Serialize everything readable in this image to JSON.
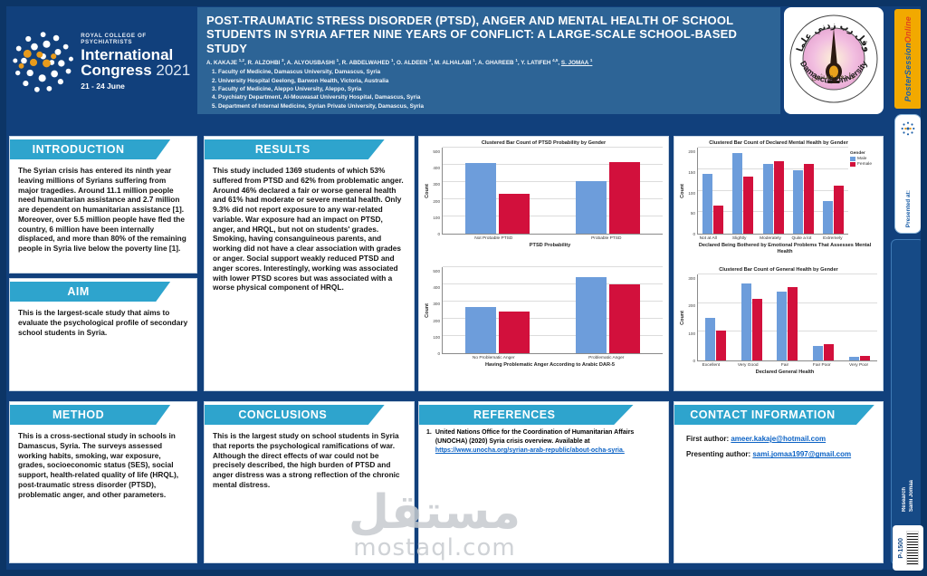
{
  "header": {
    "congress": {
      "org": "ROYAL COLLEGE OF PSYCHIATRISTS",
      "line1": "International",
      "line2": "Congress",
      "year": "2021",
      "dates": "21 - 24 June"
    },
    "title": "POST-TRAUMATIC STRESS DISORDER (PTSD), ANGER AND MENTAL HEALTH OF SCHOOL STUDENTS IN SYRIA AFTER NINE YEARS OF CONFLICT: A LARGE-SCALE SCHOOL-BASED STUDY",
    "authors": [
      {
        "name": "A. KAKAJE",
        "sup": "1,2",
        "underline": false
      },
      {
        "name": "R. ALZOHBI",
        "sup": "3",
        "underline": false
      },
      {
        "name": "A. ALYOUSBASHI",
        "sup": "1",
        "underline": false
      },
      {
        "name": "R. ABDELWAHED",
        "sup": "1",
        "underline": false
      },
      {
        "name": "O. ALDEEN",
        "sup": "3",
        "underline": false
      },
      {
        "name": "M. ALHALABI",
        "sup": "1",
        "underline": false
      },
      {
        "name": "A. GHAREEB",
        "sup": "1",
        "underline": false
      },
      {
        "name": "Y. LATIFEH",
        "sup": "4,5",
        "underline": false
      },
      {
        "name": "S. JOMAA",
        "sup": "1",
        "underline": true
      }
    ],
    "affiliations": [
      "Faculty of Medicine, Damascus University, Damascus, Syria",
      "University Hospital Geelong, Barwon Health, Victoria, Australia",
      "Faculty of Medicine, Aleppo University, Aleppo, Syria",
      "Psychiatry Department, Al-Mouwasat University Hospital, Damascus, Syria",
      "Department of Internal Medicine, Syrian Private University, Damascus, Syria"
    ],
    "university_seal": {
      "arabic": "وقل رب زدني علما",
      "english": "Damascus University"
    }
  },
  "sections": {
    "introduction": {
      "title": "INTRODUCTION",
      "body": "The Syrian crisis has entered its ninth year leaving millions of Syrians suffering from major tragedies. Around 11.1 million people need humanitarian assistance and 2.7 million are dependent on humanitarian assistance [1]. Moreover, over 5.5 million people have fled the country, 6 million have been internally displaced, and more than 80% of the remaining people in Syria live below the poverty line [1]."
    },
    "aim": {
      "title": "AIM",
      "body": "This is the largest-scale study that aims to evaluate the psychological profile of secondary school students in Syria."
    },
    "method": {
      "title": "METHOD",
      "body": "This is a cross-sectional study in schools in Damascus, Syria. The surveys assessed working habits, smoking, war exposure, grades, socioeconomic status (SES), social support, health-related quality of life (HRQL), post-traumatic stress disorder (PTSD), problematic anger, and other parameters."
    },
    "results": {
      "title": "RESULTS",
      "body": "This study included 1369 students of which 53% suffered from PTSD and 62% from problematic anger. Around 46% declared a fair or worse general health and 61% had moderate or severe mental health. Only 9.3% did not report exposure to any war-related variable. War exposure had an impact on PTSD, anger, and HRQL, but not on students' grades. Smoking, having consanguineous parents, and working did not have a clear association with grades or anger. Social support weakly reduced PTSD and anger scores. Interestingly, working was associated with lower PTSD scores but was associated with a worse physical component of HRQL."
    },
    "conclusions": {
      "title": "CONCLUSIONS",
      "body": "This is the largest study on school students in Syria that reports the psychological ramifications of war. Although the direct effects of war could not be precisely described, the high burden of PTSD and anger distress was a strong reflection of the chronic mental distress."
    },
    "references": {
      "title": "REFERENCES",
      "items": [
        {
          "text": "United Nations Office for the Coordination of Humanitarian Affairs (UNOCHA) (2020) Syria crisis overview. Available at",
          "link": "https://www.unocha.org/syrian-arab-republic/about-ocha-syria."
        }
      ]
    },
    "contact": {
      "title": "CONTACT INFORMATION",
      "first_label": "First author:",
      "first_email": "ameer.kakaje@hotmail.com",
      "presenting_label": "Presenting author:",
      "presenting_email": "sami.jomaa1997@gmail.com"
    }
  },
  "sidebar": {
    "poster_session": {
      "word1": "Poster",
      "word2": "Session",
      "word3": "Online"
    },
    "presented_at": "Presented at:",
    "research_label": "Research",
    "presenter": "Sami Jomaa",
    "poster_code": "P-1500"
  },
  "watermark": {
    "arabic": "مستقل",
    "domain": "mostaql.com"
  },
  "colors": {
    "frame_blue": "#11407C",
    "title_band_blue": "#2D6496",
    "banner_cyan": "#2EA4CD",
    "male_blue": "#6D9DDB",
    "female_red": "#D2103C",
    "link_blue": "#0B62C5",
    "badge_gold": "#F2A900"
  },
  "chart_data": [
    {
      "type": "bar",
      "title": "Clustered Bar Count of PTSD Probability by Gender",
      "xlabel": "PTSD Probability",
      "ylabel": "Count",
      "ymax": 500,
      "yticks": [
        0,
        100,
        200,
        300,
        400,
        500
      ],
      "categories": [
        "Not Probable PTSD",
        "Probable PTSD"
      ],
      "series": [
        {
          "name": "Male",
          "color": "#6D9DDB",
          "values": [
            410,
            305
          ]
        },
        {
          "name": "Female",
          "color": "#D2103C",
          "values": [
            230,
            415
          ]
        }
      ],
      "legend": false,
      "legend_title": "Gender"
    },
    {
      "type": "bar",
      "title": "",
      "xlabel": "Having Problematic Anger According to Arabic DAR-5",
      "ylabel": "Count",
      "ymax": 500,
      "yticks": [
        0,
        100,
        200,
        300,
        400,
        500
      ],
      "categories": [
        "No Problematic Anger",
        "Problematic Anger"
      ],
      "series": [
        {
          "name": "Male",
          "color": "#6D9DDB",
          "values": [
            270,
            440
          ]
        },
        {
          "name": "Female",
          "color": "#D2103C",
          "values": [
            240,
            400
          ]
        }
      ],
      "legend": false,
      "legend_title": "Gender"
    },
    {
      "type": "bar",
      "title": "Clustered Bar Count of Declared Mental Health by Gender",
      "xlabel": "Declared Being Bothered by Emotional Problems That Assesses Mental Health",
      "ylabel": "Count",
      "ymax": 200,
      "yticks": [
        0,
        50,
        100,
        150,
        200
      ],
      "categories": [
        "Not at All",
        "Slightly",
        "Moderately",
        "Quite a lot",
        "Extremely"
      ],
      "series": [
        {
          "name": "Male",
          "color": "#6D9DDB",
          "values": [
            140,
            187,
            162,
            147,
            75
          ]
        },
        {
          "name": "Female",
          "color": "#D2103C",
          "values": [
            65,
            133,
            168,
            163,
            112
          ]
        }
      ],
      "legend": true,
      "legend_title": "Gender"
    },
    {
      "type": "bar",
      "title": "Clustered Bar Count of General Health by Gender",
      "xlabel": "Declared General Health",
      "ylabel": "Count",
      "ymax": 300,
      "yticks": [
        0,
        100,
        200,
        300
      ],
      "categories": [
        "Excellent",
        "Very Good",
        "Fair",
        "Fair Poor",
        "Very Poor"
      ],
      "series": [
        {
          "name": "Male",
          "color": "#6D9DDB",
          "values": [
            148,
            268,
            240,
            50,
            12
          ]
        },
        {
          "name": "Female",
          "color": "#D2103C",
          "values": [
            103,
            215,
            255,
            57,
            15
          ]
        }
      ],
      "legend": false,
      "legend_title": "Gender"
    }
  ]
}
